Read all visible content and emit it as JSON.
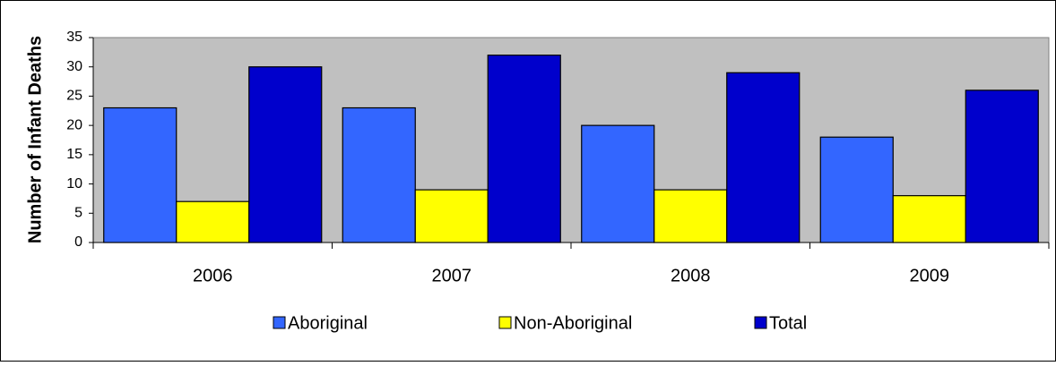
{
  "chart_data": {
    "type": "bar",
    "y_label": "Number of Infant Deaths",
    "categories": [
      "2006",
      "2007",
      "2008",
      "2009"
    ],
    "series": [
      {
        "name": "Aboriginal",
        "color": "#3366FF",
        "values": [
          23,
          23,
          20,
          18
        ]
      },
      {
        "name": "Non-Aboriginal",
        "color": "#FFFF00",
        "values": [
          7,
          9,
          9,
          8
        ]
      },
      {
        "name": "Total",
        "color": "#0000CC",
        "values": [
          30,
          32,
          29,
          26
        ]
      }
    ],
    "ylim": [
      0,
      35
    ],
    "yticks": [
      0,
      5,
      10,
      15,
      20,
      25,
      30,
      35
    ],
    "plot_background": "#C0C0C0",
    "grid": false,
    "legend": "bottom"
  }
}
